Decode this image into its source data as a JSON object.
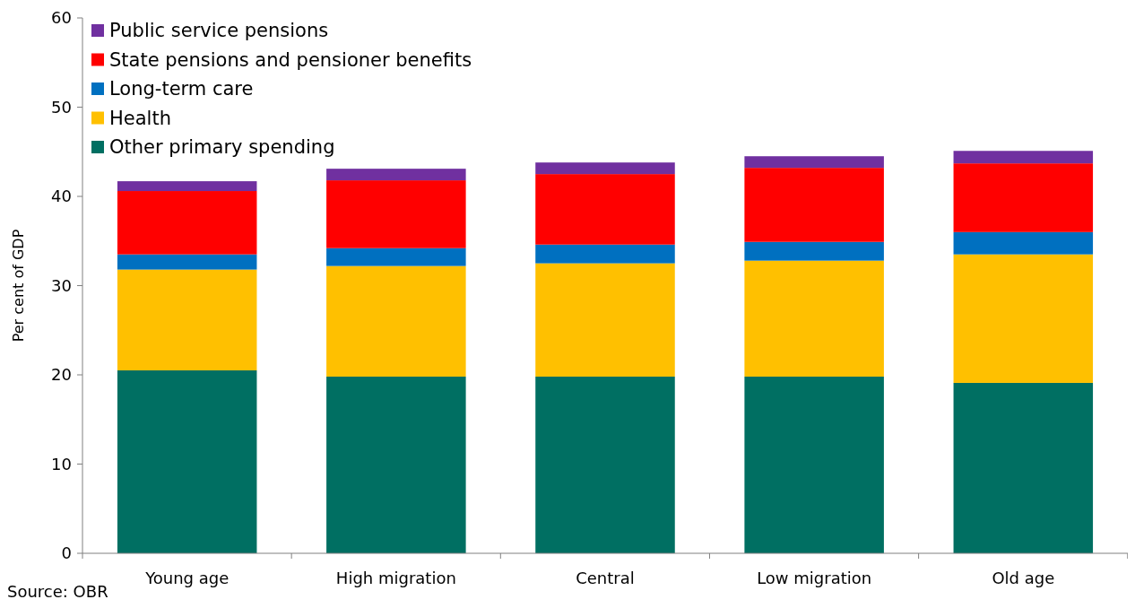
{
  "chart_data": {
    "type": "bar",
    "stacked": true,
    "ylabel": "Per cent of GDP",
    "categories": [
      "Young age",
      "High migration",
      "Central",
      "Low migration",
      "Old age"
    ],
    "series": [
      {
        "name": "Other primary spending",
        "color": "#006f62",
        "values": [
          20.5,
          19.8,
          19.8,
          19.8,
          19.1
        ]
      },
      {
        "name": "Health",
        "color": "#ffc000",
        "values": [
          11.3,
          12.4,
          12.7,
          13.0,
          14.4
        ]
      },
      {
        "name": "Long-term care",
        "color": "#0070c0",
        "values": [
          1.7,
          2.0,
          2.1,
          2.1,
          2.5
        ]
      },
      {
        "name": "State pensions and pensioner benefits",
        "color": "#ff0000",
        "values": [
          7.1,
          7.6,
          7.9,
          8.3,
          7.7
        ]
      },
      {
        "name": "Public service pensions",
        "color": "#7030a0",
        "values": [
          1.1,
          1.3,
          1.3,
          1.3,
          1.4
        ]
      }
    ],
    "ylim": [
      0,
      60
    ],
    "yticks": [
      0,
      10,
      20,
      30,
      40,
      50,
      60
    ],
    "grid": false,
    "legend": "top left",
    "annotations": [
      "Source: OBR"
    ]
  }
}
